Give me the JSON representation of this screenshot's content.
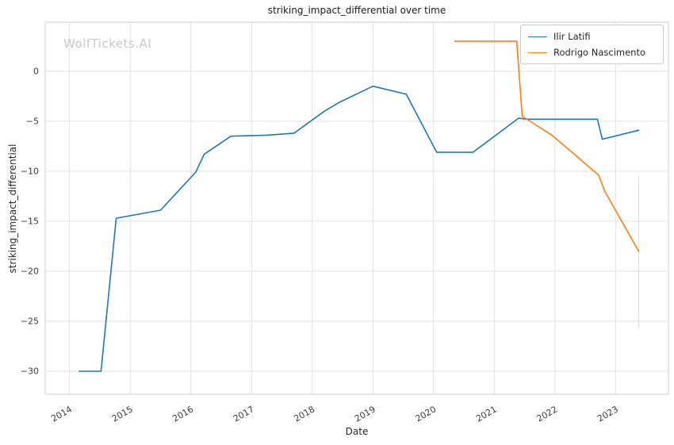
{
  "chart_data": {
    "type": "line",
    "title": "striking_impact_differential over time",
    "xlabel": "Date",
    "ylabel": "striking_impact_differential",
    "watermark": "WolfTickets.AI",
    "legend_position": "upper right",
    "grid": true,
    "xlim": [
      2013.6,
      2023.87
    ],
    "ylim": [
      -32.3,
      4.9
    ],
    "xtick_values": [
      2014,
      2015,
      2016,
      2017,
      2018,
      2019,
      2020,
      2021,
      2022,
      2023
    ],
    "xtick_labels": [
      "2014",
      "2015",
      "2016",
      "2017",
      "2018",
      "2019",
      "2020",
      "2021",
      "2022",
      "2023"
    ],
    "ytick_values": [
      0,
      -5,
      -10,
      -15,
      -20,
      -25,
      -30
    ],
    "ytick_labels": [
      "0",
      "−5",
      "−10",
      "−15",
      "−20",
      "−25",
      "−30"
    ],
    "series": [
      {
        "name": "Ilir Latifi",
        "color": "#1f77b4",
        "points": [
          [
            2014.16,
            -30.0
          ],
          [
            2014.52,
            -30.0
          ],
          [
            2014.77,
            -14.7
          ],
          [
            2015.5,
            -13.9
          ],
          [
            2016.08,
            -10.1
          ],
          [
            2016.22,
            -8.3
          ],
          [
            2016.66,
            -6.5
          ],
          [
            2017.25,
            -6.4
          ],
          [
            2017.7,
            -6.2
          ],
          [
            2018.2,
            -4.0
          ],
          [
            2018.45,
            -3.1
          ],
          [
            2019.0,
            -1.5
          ],
          [
            2019.55,
            -2.3
          ],
          [
            2020.05,
            -8.1
          ],
          [
            2020.65,
            -8.1
          ],
          [
            2021.4,
            -4.7
          ],
          [
            2021.55,
            -4.8
          ],
          [
            2022.7,
            -4.8
          ],
          [
            2022.78,
            -6.8
          ],
          [
            2023.38,
            -5.9
          ]
        ]
      },
      {
        "name": "Rodrigo Nascimento",
        "color": "#ff7f0e",
        "points": [
          [
            2020.35,
            3.0
          ],
          [
            2021.37,
            3.0
          ],
          [
            2021.46,
            -4.5
          ],
          [
            2021.95,
            -6.4
          ],
          [
            2022.3,
            -8.2
          ],
          [
            2022.72,
            -10.4
          ],
          [
            2022.82,
            -12.0
          ],
          [
            2023.38,
            -18.0
          ]
        ]
      }
    ],
    "error_bar": {
      "x": 2023.38,
      "y_from": -10.5,
      "y_to": -25.7,
      "color": "#ff7f0e",
      "opacity": 0.3
    }
  }
}
